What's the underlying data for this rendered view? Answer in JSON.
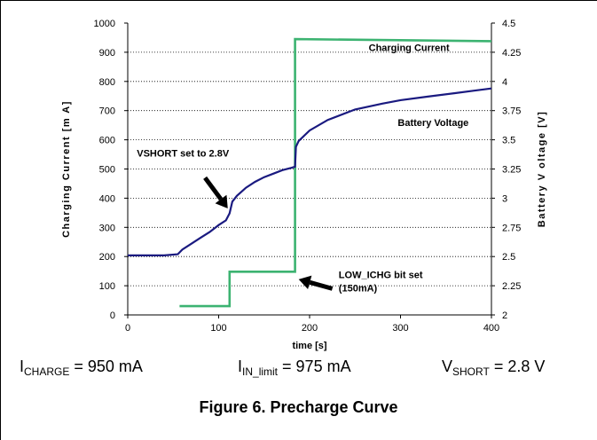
{
  "chart_data": {
    "type": "line",
    "xlabel": "time [s]",
    "ylabel_left": "Charging Current [m A]",
    "ylabel_right": "Battery V oltage [V]",
    "xlim": [
      0,
      400
    ],
    "ylim_left": [
      0,
      1000
    ],
    "ylim_right": [
      2,
      4.5
    ],
    "x_ticks": [
      "0",
      "100",
      "200",
      "300",
      "400"
    ],
    "y_left_ticks": [
      "0",
      "100",
      "200",
      "300",
      "400",
      "500",
      "600",
      "700",
      "800",
      "900",
      "1000"
    ],
    "y_right_ticks": [
      "2",
      "2.25",
      "2.5",
      "2.75",
      "3",
      "3.25",
      "3.5",
      "3.75",
      "4",
      "4.25",
      "4.5"
    ],
    "grid": "horizontal dotted",
    "series": [
      {
        "name": "Charging Current",
        "axis": "left",
        "color": "#3cb371",
        "points": [
          [
            57,
            30
          ],
          [
            112,
            30
          ],
          [
            112,
            148
          ],
          [
            184,
            148
          ],
          [
            184,
            945
          ],
          [
            400,
            938
          ]
        ]
      },
      {
        "name": "Battery Voltage",
        "axis": "right",
        "color": "#1a1a80",
        "points": [
          [
            0,
            2.51
          ],
          [
            20,
            2.51
          ],
          [
            40,
            2.51
          ],
          [
            55,
            2.52
          ],
          [
            60,
            2.56
          ],
          [
            70,
            2.61
          ],
          [
            80,
            2.66
          ],
          [
            90,
            2.71
          ],
          [
            100,
            2.77
          ],
          [
            108,
            2.81
          ],
          [
            112,
            2.87
          ],
          [
            115,
            2.97
          ],
          [
            120,
            3.02
          ],
          [
            130,
            3.09
          ],
          [
            140,
            3.14
          ],
          [
            150,
            3.18
          ],
          [
            160,
            3.21
          ],
          [
            170,
            3.24
          ],
          [
            180,
            3.26
          ],
          [
            184,
            3.27
          ],
          [
            185,
            3.44
          ],
          [
            188,
            3.49
          ],
          [
            200,
            3.58
          ],
          [
            220,
            3.67
          ],
          [
            250,
            3.76
          ],
          [
            280,
            3.81
          ],
          [
            300,
            3.84
          ],
          [
            330,
            3.87
          ],
          [
            360,
            3.9
          ],
          [
            380,
            3.92
          ],
          [
            400,
            3.94
          ]
        ]
      }
    ],
    "annotations": [
      {
        "text": "Charging Current",
        "x": 265,
        "y": 905,
        "axis": "left"
      },
      {
        "text": "Battery Voltage",
        "x": 297,
        "y": 3.62,
        "axis": "right"
      },
      {
        "text": "VSHORT set to 2.8V",
        "x": 10,
        "y": 543,
        "axis": "left"
      },
      {
        "text": "LOW_ICHG bit set",
        "x": 232,
        "y": 126,
        "axis": "left"
      },
      {
        "text": "(150mA)",
        "x": 232,
        "y": 80,
        "axis": "left"
      }
    ],
    "arrows": [
      {
        "from": [
          85,
          470
        ],
        "to": [
          110,
          365
        ],
        "axis": "left"
      },
      {
        "from": [
          225,
          90
        ],
        "to": [
          188,
          122
        ],
        "axis": "left"
      }
    ]
  },
  "equations": {
    "icharge": {
      "main": "I",
      "sub": "CHARGE",
      "rest": " = 950 mA"
    },
    "iin": {
      "main": "I",
      "sub": "IN_limit",
      "rest": " = 975 mA"
    },
    "vshort": {
      "main": "V",
      "sub": "SHORT",
      "rest": " = 2.8 V"
    }
  },
  "caption": "Figure 6. Precharge Curve"
}
